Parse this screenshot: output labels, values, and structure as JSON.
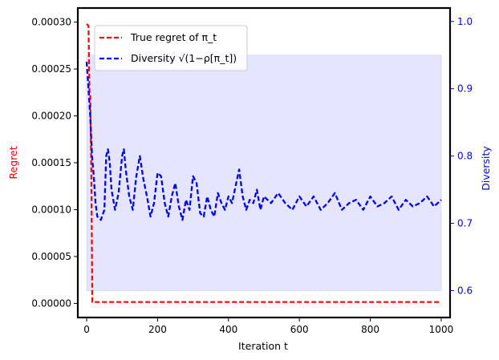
{
  "chart_data": {
    "type": "line",
    "xlabel": "Iteration t",
    "ylabel_left": "Regret",
    "ylabel_right": "Diversity",
    "xlim": [
      -25,
      1025
    ],
    "ylim_left": [
      -1.5e-05,
      0.000315
    ],
    "ylim_right": [
      0.56,
      1.02
    ],
    "xticks": [
      0,
      200,
      400,
      600,
      800,
      1000
    ],
    "xtick_labels": [
      "0",
      "200",
      "400",
      "600",
      "800",
      "1000"
    ],
    "yticks_left": [
      0,
      5e-05,
      0.0001,
      0.00015,
      0.0002,
      0.00025,
      0.0003
    ],
    "ytick_labels_left": [
      "0.00000",
      "0.00005",
      "0.00010",
      "0.00015",
      "0.00020",
      "0.00025",
      "0.00030"
    ],
    "yticks_right": [
      0.6,
      0.7,
      0.8,
      0.9,
      1.0
    ],
    "ytick_labels_right": [
      "0.6",
      "0.7",
      "0.8",
      "0.9",
      "1.0"
    ],
    "legend_position": "upper-left",
    "colors": {
      "regret": "#ff0000",
      "diversity": "#0000ff",
      "band": "#e5e5ff",
      "band_edge": "#c8c8ff"
    },
    "series": [
      {
        "name": "True regret of π_t",
        "axis": "left",
        "style": "dashed",
        "color": "#ff0000",
        "x": [
          0,
          5,
          8,
          10,
          13,
          16,
          1000
        ],
        "y": [
          0.000298,
          0.000296,
          0.000224,
          0.000222,
          0.00014,
          1.5e-06,
          1.5e-06
        ]
      },
      {
        "name": "Diversity √(1−ρ[π_t])",
        "axis": "right",
        "style": "dashed",
        "color": "#0000ff",
        "x": [
          0,
          5,
          10,
          15,
          20,
          25,
          30,
          40,
          50,
          55,
          60,
          65,
          70,
          80,
          90,
          100,
          105,
          110,
          120,
          130,
          140,
          150,
          160,
          170,
          180,
          190,
          200,
          210,
          220,
          230,
          240,
          250,
          260,
          270,
          280,
          290,
          300,
          310,
          320,
          330,
          340,
          350,
          360,
          370,
          380,
          390,
          400,
          410,
          420,
          430,
          440,
          450,
          460,
          470,
          480,
          490,
          500,
          520,
          540,
          560,
          580,
          600,
          620,
          640,
          660,
          680,
          700,
          720,
          740,
          760,
          780,
          800,
          820,
          840,
          860,
          880,
          900,
          920,
          940,
          960,
          980,
          1000
        ],
        "y": [
          0.94,
          0.9,
          0.86,
          0.8,
          0.77,
          0.73,
          0.71,
          0.705,
          0.72,
          0.8,
          0.81,
          0.79,
          0.75,
          0.72,
          0.745,
          0.8,
          0.81,
          0.78,
          0.74,
          0.72,
          0.77,
          0.8,
          0.765,
          0.74,
          0.71,
          0.73,
          0.775,
          0.77,
          0.73,
          0.71,
          0.74,
          0.76,
          0.725,
          0.705,
          0.735,
          0.72,
          0.77,
          0.76,
          0.715,
          0.71,
          0.74,
          0.72,
          0.71,
          0.745,
          0.73,
          0.72,
          0.74,
          0.73,
          0.755,
          0.78,
          0.74,
          0.72,
          0.735,
          0.73,
          0.75,
          0.72,
          0.74,
          0.73,
          0.745,
          0.73,
          0.72,
          0.74,
          0.725,
          0.74,
          0.72,
          0.73,
          0.745,
          0.72,
          0.73,
          0.735,
          0.72,
          0.74,
          0.725,
          0.73,
          0.74,
          0.72,
          0.735,
          0.725,
          0.73,
          0.74,
          0.725,
          0.735
        ]
      }
    ],
    "band": {
      "axis": "right",
      "x": [
        0,
        1000
      ],
      "lower": [
        0.6,
        0.6
      ],
      "upper": [
        0.95,
        0.95
      ]
    }
  }
}
